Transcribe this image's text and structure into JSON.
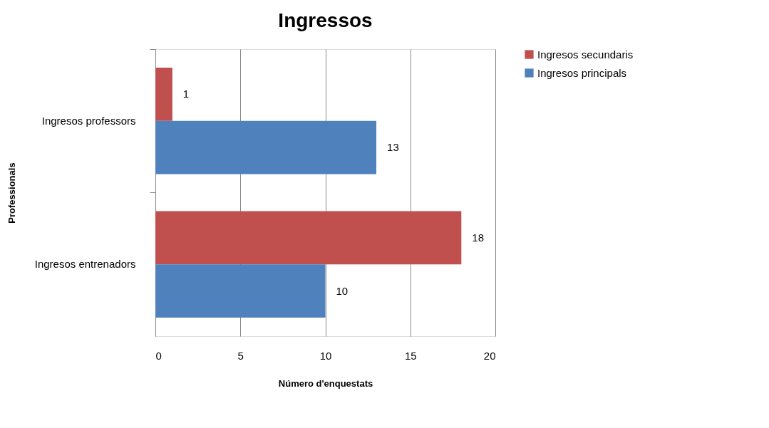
{
  "chart_data": {
    "type": "bar",
    "orientation": "horizontal",
    "title": "Ingressos",
    "xlabel": "Número d'enquestats",
    "ylabel": "Professionals",
    "categories": [
      "Ingresos professors",
      "Ingresos entrenadors"
    ],
    "series": [
      {
        "name": "Ingresos secundaris",
        "color": "#c0504d",
        "values": [
          1,
          18
        ]
      },
      {
        "name": "Ingresos principals",
        "color": "#4f81bd",
        "values": [
          13,
          10
        ]
      }
    ],
    "xlim": [
      0,
      20
    ],
    "xticks": [
      0,
      5,
      10,
      15,
      20
    ],
    "grid": "x",
    "legend": "right",
    "data_labels": true
  }
}
